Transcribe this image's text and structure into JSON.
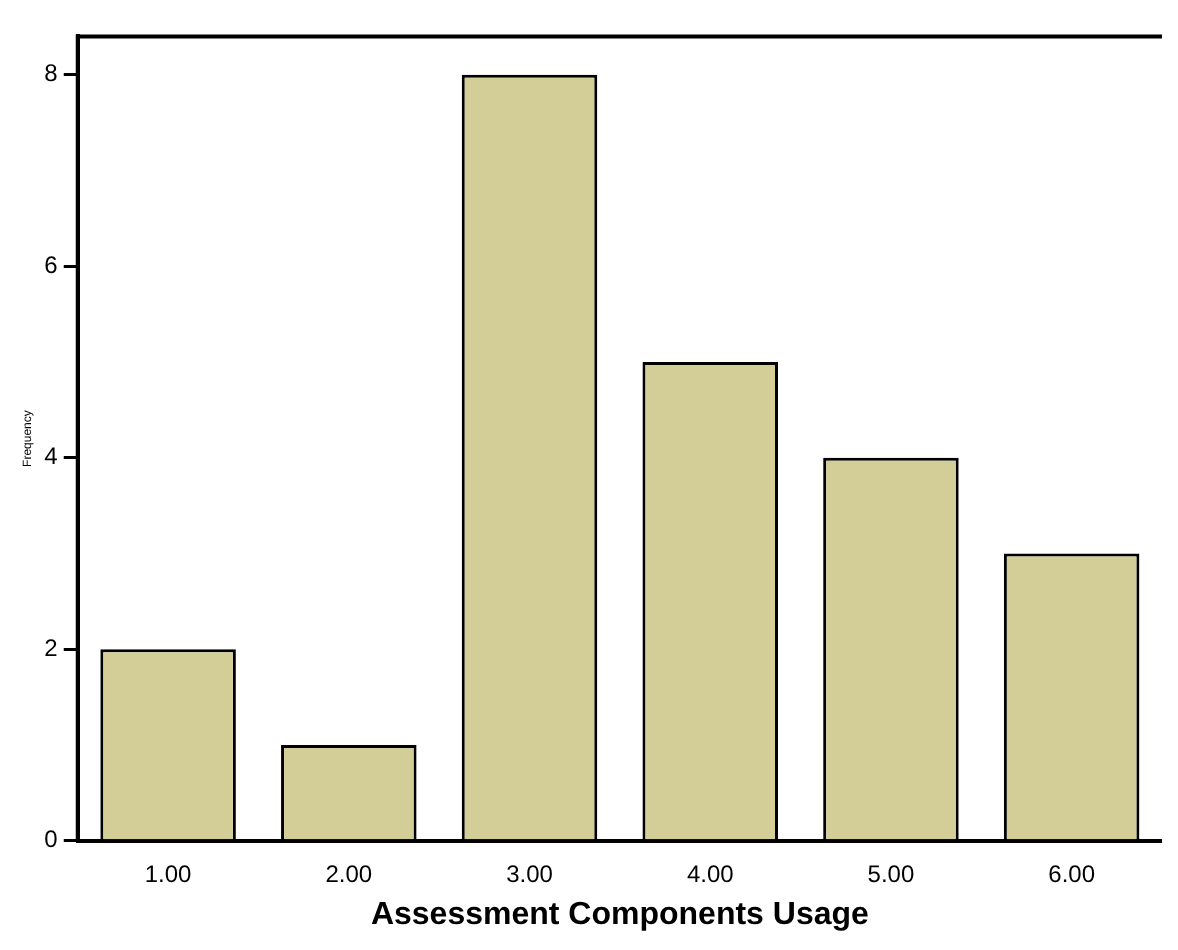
{
  "chart_data": {
    "type": "bar",
    "xlabel": "Assessment Components Usage",
    "ylabel": "Frequency",
    "categories": [
      "1.00",
      "2.00",
      "3.00",
      "4.00",
      "5.00",
      "6.00"
    ],
    "values": [
      2,
      1,
      8,
      5,
      4,
      3
    ],
    "color": "#d3cd97",
    "ylim": [
      0,
      8.4
    ],
    "yticks": [
      0,
      2,
      4,
      6,
      8
    ],
    "grid": false,
    "legend": false
  }
}
